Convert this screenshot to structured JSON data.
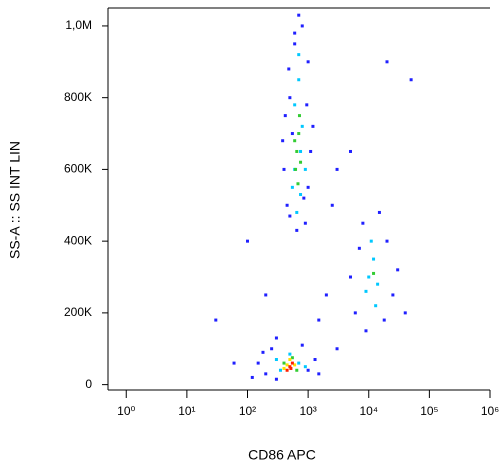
{
  "chart_data": {
    "type": "scatter",
    "x_label": "CD86 APC",
    "y_label": "SS-A :: SS INT LIN",
    "xscale": "log",
    "xlim": [
      0.5,
      1000000
    ],
    "xticks": [
      {
        "value": 1,
        "label": "10⁰"
      },
      {
        "value": 10,
        "label": "10¹"
      },
      {
        "value": 100,
        "label": "10²"
      },
      {
        "value": 1000,
        "label": "10³"
      },
      {
        "value": 10000,
        "label": "10⁴"
      },
      {
        "value": 100000,
        "label": "10⁵"
      },
      {
        "value": 1000000,
        "label": "10⁶"
      }
    ],
    "ylim": [
      -15000,
      1050000
    ],
    "yticks": [
      0,
      {
        "value": 200000,
        "label": "200K"
      },
      {
        "value": 400000,
        "label": "400K"
      },
      {
        "value": 600000,
        "label": "600K"
      },
      {
        "value": 800000,
        "label": "800K"
      },
      {
        "value": 1000000,
        "label": "1,0M"
      }
    ],
    "series": [
      {
        "color": "#2020ff",
        "x": [
          450,
          500,
          600,
          900,
          1000,
          550,
          1100,
          400,
          650,
          800,
          480,
          1000,
          420,
          700,
          950,
          500,
          850,
          600,
          380,
          1200,
          150,
          200,
          1000,
          1300,
          250,
          800,
          120,
          300,
          1500,
          180,
          6000,
          20000,
          8000,
          25000,
          9000,
          15000,
          5000,
          30000,
          7000,
          18000,
          3000,
          200,
          30,
          100,
          50000,
          20000,
          3000,
          2000,
          40000,
          300,
          1500,
          60,
          5000,
          2500
        ],
        "y": [
          500000,
          800000,
          950000,
          450000,
          900000,
          700000,
          650000,
          600000,
          430000,
          1000000,
          880000,
          550000,
          750000,
          1030000,
          780000,
          470000,
          520000,
          980000,
          680000,
          720000,
          60000,
          30000,
          40000,
          70000,
          100000,
          110000,
          20000,
          15000,
          30000,
          90000,
          200000,
          400000,
          450000,
          250000,
          150000,
          480000,
          300000,
          320000,
          380000,
          180000,
          100000,
          250000,
          180000,
          400000,
          850000,
          900000,
          600000,
          250000,
          200000,
          130000,
          180000,
          60000,
          650000,
          500000
        ]
      },
      {
        "color": "#00c8ff",
        "x": [
          600,
          750,
          700,
          550,
          800,
          650,
          700,
          900,
          600,
          750,
          350,
          700,
          500,
          300,
          900,
          10000,
          12000,
          9000,
          14000,
          11000,
          13000
        ],
        "y": [
          600000,
          650000,
          850000,
          550000,
          720000,
          480000,
          920000,
          600000,
          780000,
          530000,
          40000,
          60000,
          85000,
          70000,
          50000,
          300000,
          350000,
          260000,
          280000,
          400000,
          220000
        ]
      },
      {
        "color": "#33cc33",
        "x": [
          650,
          700,
          620,
          720,
          680,
          600,
          750,
          400,
          650,
          550,
          12000
        ],
        "y": [
          650000,
          700000,
          600000,
          750000,
          560000,
          680000,
          620000,
          60000,
          40000,
          75000,
          310000
        ]
      },
      {
        "color": "#ffe000",
        "x": [
          450,
          600,
          500,
          400
        ],
        "y": [
          55000,
          55000,
          70000,
          45000
        ]
      },
      {
        "color": "#ff2000",
        "x": [
          500,
          550,
          450,
          520
        ],
        "y": [
          50000,
          60000,
          40000,
          45000
        ]
      }
    ]
  }
}
